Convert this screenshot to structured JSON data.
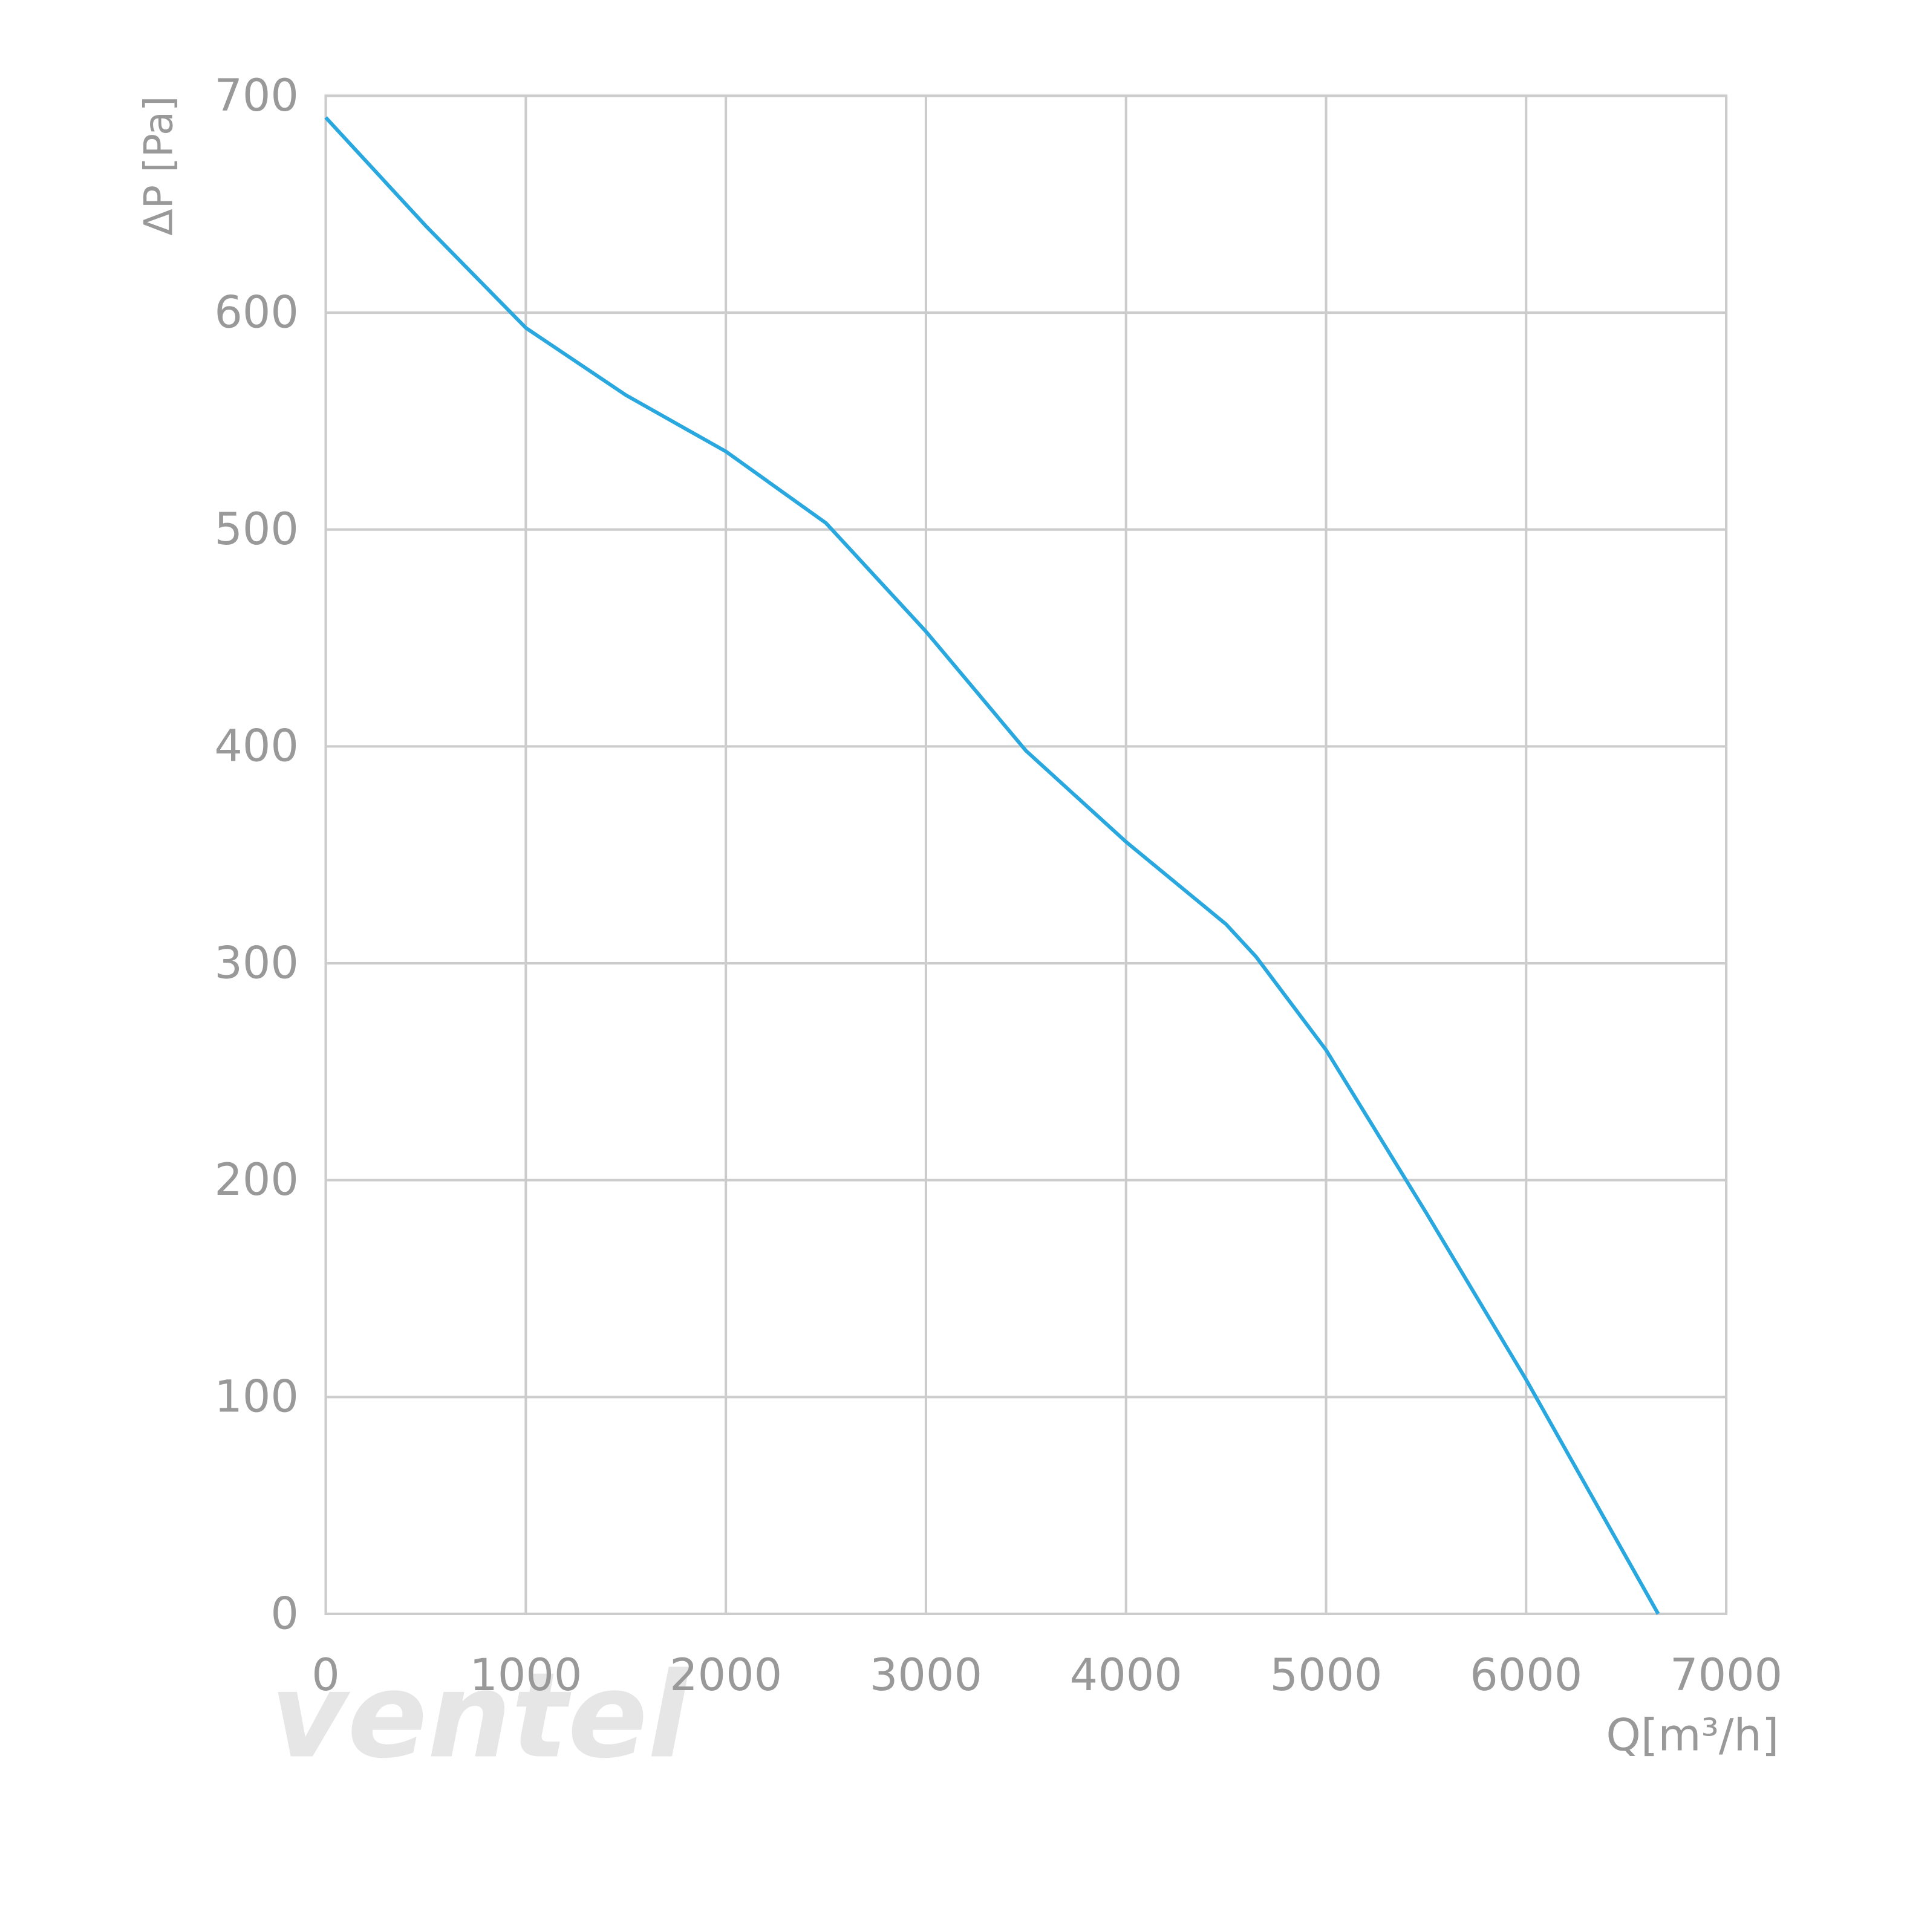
{
  "chart_data": {
    "type": "line",
    "x_label": "Q[m³/h]",
    "y_label": "ΔP [Pa]",
    "watermark": "ventel",
    "x": [
      0,
      500,
      1000,
      1500,
      2000,
      2500,
      3000,
      3500,
      4000,
      4500,
      4650,
      5000,
      5500,
      6000,
      6660
    ],
    "series": [
      {
        "name": "ΔP",
        "color": "#29a8e0",
        "values": [
          690,
          640,
          593,
          562,
          536,
          503,
          453,
          398,
          356,
          318,
          303,
          260,
          185,
          108,
          0
        ]
      }
    ],
    "xlim": [
      0,
      7000
    ],
    "xticks": [
      0,
      1000,
      2000,
      3000,
      4000,
      5000,
      6000,
      7000
    ],
    "ylim": [
      0,
      700
    ],
    "yticks": [
      0,
      100,
      200,
      300,
      400,
      500,
      600,
      700
    ],
    "grid": true,
    "grid_color": "#cccccc"
  }
}
